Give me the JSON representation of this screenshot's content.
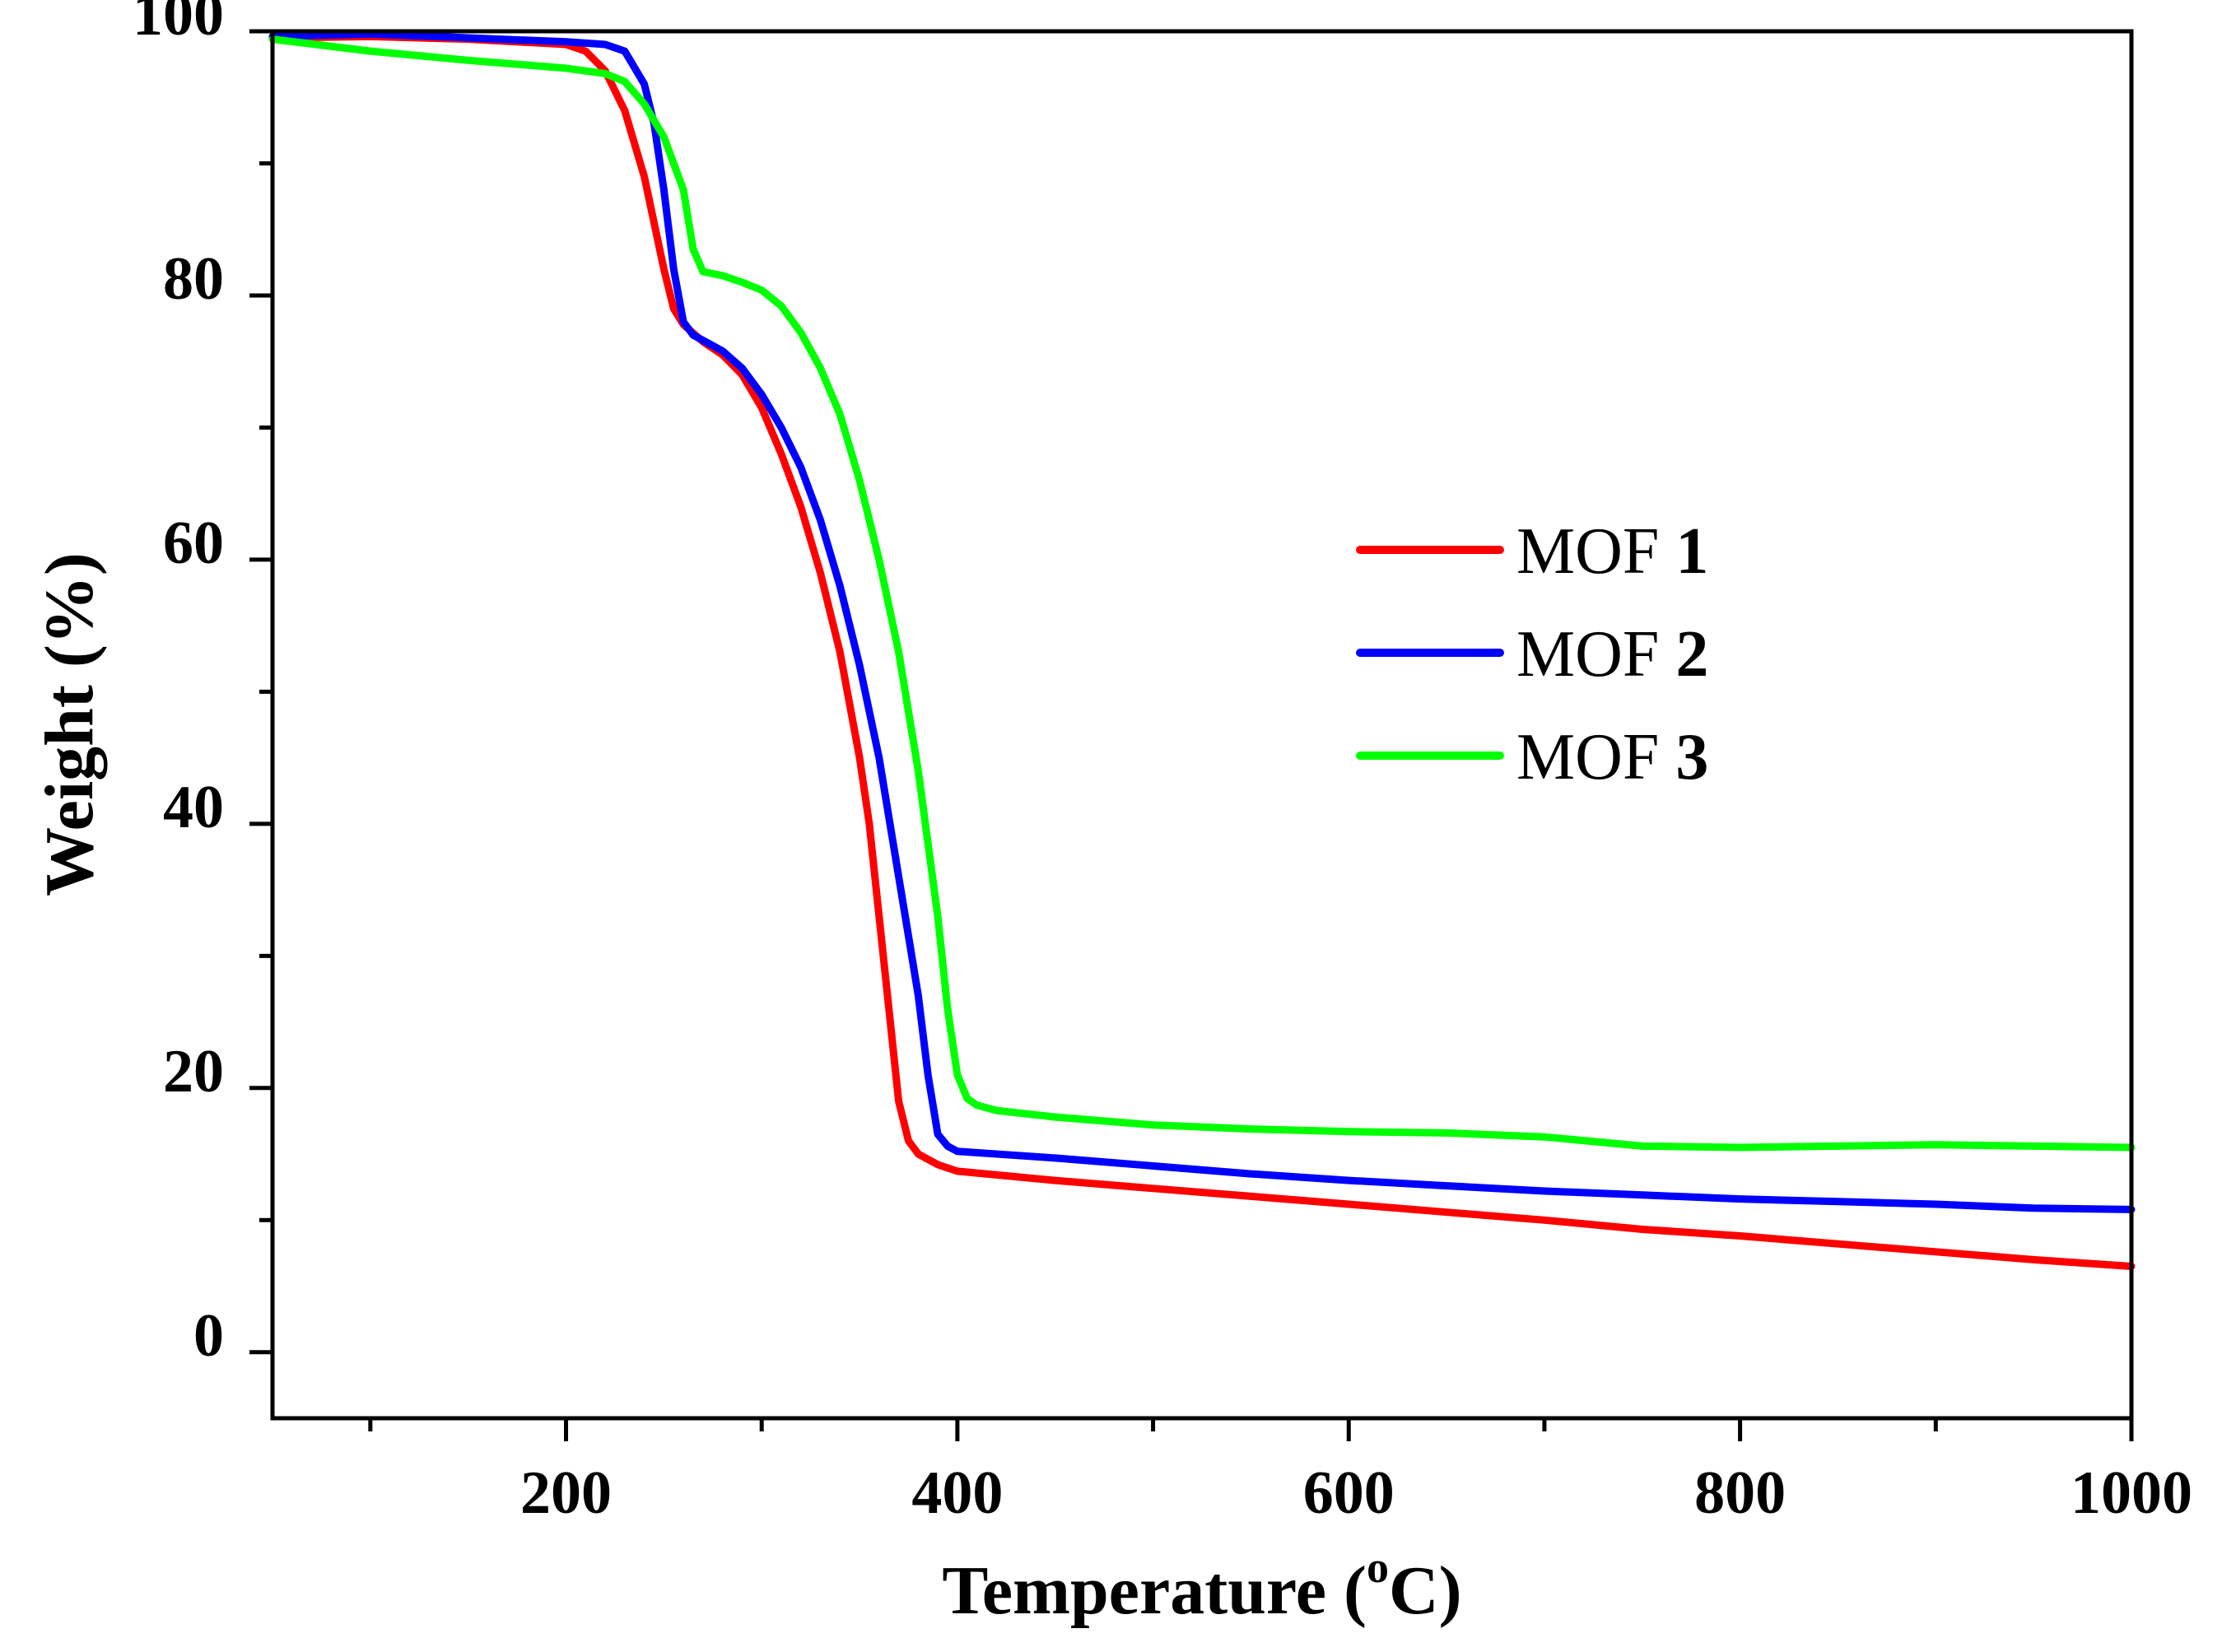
{
  "chart_data": {
    "type": "line",
    "title": "",
    "xlabel": "Temperature (",
    "xlabel_sup": "o",
    "xlabel_end": "C)",
    "ylabel": "Weight (%)",
    "xlim": [
      50,
      1000
    ],
    "ylim": [
      -5,
      100
    ],
    "x_ticks": [
      200,
      400,
      600,
      800,
      1000
    ],
    "x_minor_ticks": [
      100,
      300,
      500,
      700,
      900
    ],
    "y_ticks": [
      0,
      20,
      40,
      60,
      80,
      100
    ],
    "y_label_values": [
      0,
      20,
      40,
      60,
      80,
      100
    ],
    "y_minor_ticks": [
      10,
      30,
      50,
      70,
      90
    ],
    "legend_position": "right-center",
    "series": [
      {
        "name": "MOF",
        "number": "1",
        "color": "#ff0000",
        "x": [
          50,
          100,
          150,
          200,
          210,
          220,
          230,
          240,
          250,
          255,
          260,
          270,
          280,
          290,
          300,
          310,
          320,
          330,
          340,
          350,
          355,
          360,
          365,
          370,
          375,
          380,
          390,
          400,
          450,
          500,
          550,
          600,
          650,
          700,
          750,
          800,
          850,
          900,
          950,
          1000
        ],
        "y": [
          99.5,
          99.6,
          99.4,
          99.0,
          98.5,
          97.0,
          94.0,
          89.0,
          82.0,
          79.0,
          77.8,
          76.5,
          75.5,
          74.0,
          71.5,
          68.0,
          64.0,
          59.0,
          53.0,
          45.0,
          40.0,
          33.0,
          26.0,
          19.0,
          16.0,
          15.0,
          14.2,
          13.7,
          13.0,
          12.4,
          11.8,
          11.2,
          10.6,
          10.0,
          9.3,
          8.8,
          8.2,
          7.6,
          7.0,
          6.5
        ]
      },
      {
        "name": "MOF",
        "number": "2",
        "color": "#0000ff",
        "x": [
          50,
          100,
          150,
          200,
          220,
          230,
          240,
          245,
          250,
          255,
          260,
          265,
          270,
          280,
          290,
          300,
          310,
          320,
          330,
          340,
          350,
          360,
          370,
          380,
          385,
          390,
          395,
          400,
          450,
          500,
          550,
          600,
          650,
          700,
          750,
          800,
          850,
          900,
          950,
          1000
        ],
        "y": [
          99.6,
          99.8,
          99.5,
          99.2,
          99.0,
          98.5,
          96.0,
          93.0,
          88.0,
          82.0,
          78.0,
          77.0,
          76.6,
          75.8,
          74.5,
          72.5,
          70.0,
          67.0,
          63.0,
          58.0,
          52.0,
          45.0,
          36.0,
          27.0,
          21.0,
          16.5,
          15.6,
          15.2,
          14.7,
          14.1,
          13.5,
          13.0,
          12.6,
          12.2,
          11.9,
          11.6,
          11.4,
          11.2,
          10.9,
          10.8
        ]
      },
      {
        "name": "MOF",
        "number": "3",
        "color": "#00ff00",
        "x": [
          50,
          100,
          150,
          200,
          220,
          230,
          240,
          250,
          260,
          265,
          270,
          280,
          290,
          300,
          310,
          320,
          330,
          340,
          350,
          360,
          370,
          380,
          390,
          395,
          400,
          405,
          410,
          420,
          450,
          500,
          550,
          600,
          650,
          700,
          750,
          800,
          850,
          900,
          950,
          1000
        ],
        "y": [
          99.4,
          98.5,
          97.8,
          97.2,
          96.8,
          96.2,
          94.5,
          92.0,
          88.0,
          83.5,
          81.8,
          81.5,
          81.0,
          80.4,
          79.2,
          77.2,
          74.5,
          71.0,
          66.0,
          60.0,
          53.0,
          44.0,
          33.0,
          26.0,
          21.0,
          19.2,
          18.7,
          18.3,
          17.8,
          17.2,
          16.9,
          16.7,
          16.6,
          16.3,
          15.6,
          15.5,
          15.6,
          15.7,
          15.6,
          15.5
        ]
      }
    ]
  }
}
